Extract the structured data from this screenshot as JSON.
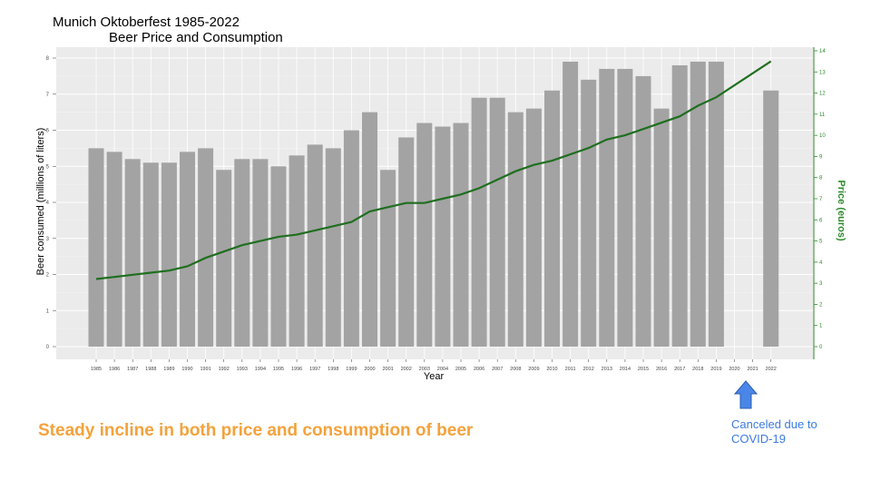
{
  "chart_data": {
    "type": "bar",
    "title": "Munich Oktoberfest 1985-2022",
    "subtitle": "Beer Price and Consumption",
    "xlabel": "Year",
    "ylabel": "Beer consumed (millions of liters)",
    "y2label": "Price (euros)",
    "categories": [
      "1985",
      "1986",
      "1987",
      "1988",
      "1989",
      "1990",
      "1991",
      "1992",
      "1993",
      "1994",
      "1995",
      "1996",
      "1997",
      "1998",
      "1999",
      "2000",
      "2001",
      "2002",
      "2003",
      "2004",
      "2005",
      "2006",
      "2007",
      "2008",
      "2009",
      "2010",
      "2011",
      "2012",
      "2013",
      "2014",
      "2015",
      "2016",
      "2017",
      "2018",
      "2019",
      "2020",
      "2021",
      "2022"
    ],
    "series": [
      {
        "name": "Beer consumed",
        "type": "bar",
        "axis": "left",
        "values": [
          5.5,
          5.4,
          5.2,
          5.1,
          5.1,
          5.4,
          5.5,
          4.9,
          5.2,
          5.2,
          5.0,
          5.3,
          5.6,
          5.5,
          6.0,
          6.5,
          4.9,
          5.8,
          6.2,
          6.1,
          6.2,
          6.9,
          6.9,
          6.5,
          6.6,
          7.1,
          7.9,
          7.4,
          7.7,
          7.7,
          7.5,
          6.6,
          7.8,
          7.9,
          7.9,
          null,
          null,
          7.1
        ]
      },
      {
        "name": "Price",
        "type": "line",
        "axis": "right",
        "values": [
          3.2,
          3.3,
          3.4,
          3.5,
          3.6,
          3.8,
          4.2,
          4.5,
          4.8,
          5.0,
          5.2,
          5.3,
          5.5,
          5.7,
          5.9,
          6.4,
          6.6,
          6.8,
          6.8,
          7.0,
          7.2,
          7.5,
          7.9,
          8.3,
          8.6,
          8.8,
          9.1,
          9.4,
          9.8,
          10.0,
          10.3,
          10.6,
          10.9,
          11.4,
          11.8,
          null,
          null,
          13.5
        ]
      }
    ],
    "ylim": [
      0,
      8
    ],
    "y2lim": [
      0,
      14
    ],
    "yticks": [
      0,
      1,
      2,
      3,
      4,
      5,
      6,
      7,
      8
    ],
    "y2ticks": [
      0,
      1,
      2,
      3,
      4,
      5,
      6,
      7,
      8,
      9,
      10,
      11,
      12,
      13,
      14
    ],
    "grid": true,
    "colors": {
      "bar": "#a3a3a3",
      "line": "#1f6f1f",
      "panel": "#ebebeb",
      "right_axis": "#2e8b2e"
    }
  },
  "caption": "Steady incline in both price and consumption of beer",
  "annotation": {
    "text_line1": "Canceled due to",
    "text_line2": "COVID-19",
    "color": "#3c7be0"
  }
}
